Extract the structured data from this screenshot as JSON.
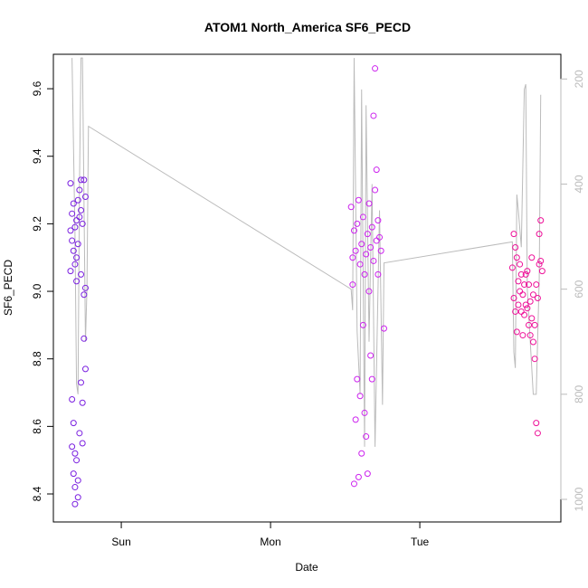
{
  "chart_data": {
    "type": "scatter",
    "title": "ATOM1 North_America SF6_PECD",
    "xlabel": "Date",
    "ylabel": "SF6_PECD",
    "xlim": [
      0.545,
      3.945
    ],
    "xticks": [
      {
        "value": 1,
        "label": "Sun"
      },
      {
        "value": 2,
        "label": "Mon"
      },
      {
        "value": 3,
        "label": "Tue"
      }
    ],
    "ylim": [
      8.317,
      9.702
    ],
    "yticks": [
      8.4,
      8.6,
      8.8,
      {
        "value": 9,
        "label": "9.0"
      },
      9.2,
      9.4,
      9.6
    ],
    "y2lim": [
      1043,
      153
    ],
    "y2ticks": [
      200,
      400,
      600,
      800,
      1000
    ],
    "y2color": "#bbbbbb",
    "series": [
      {
        "color": "#7a1fe0",
        "x": [
          0.66,
          0.66,
          0.66,
          0.67,
          0.67,
          0.67,
          0.67,
          0.68,
          0.68,
          0.68,
          0.68,
          0.69,
          0.69,
          0.69,
          0.69,
          0.69,
          0.7,
          0.7,
          0.7,
          0.7,
          0.71,
          0.71,
          0.71,
          0.71,
          0.72,
          0.72,
          0.72,
          0.73,
          0.73,
          0.73,
          0.73,
          0.74,
          0.74,
          0.74,
          0.75,
          0.75,
          0.75,
          0.76,
          0.76,
          0.76
        ],
        "values": [
          9.32,
          9.18,
          9.06,
          9.23,
          9.15,
          8.68,
          8.54,
          9.26,
          9.12,
          8.61,
          8.46,
          9.19,
          9.08,
          8.52,
          8.42,
          8.37,
          9.21,
          9.1,
          9.03,
          8.5,
          9.27,
          9.14,
          8.44,
          8.39,
          9.3,
          9.22,
          8.58,
          9.33,
          9.24,
          9.05,
          8.73,
          9.2,
          8.67,
          8.55,
          9.33,
          8.99,
          8.86,
          9.28,
          9.01,
          8.77
        ]
      },
      {
        "color": "#cc22ee",
        "x": [
          2.54,
          2.55,
          2.55,
          2.56,
          2.56,
          2.57,
          2.57,
          2.58,
          2.58,
          2.59,
          2.59,
          2.6,
          2.6,
          2.61,
          2.61,
          2.62,
          2.62,
          2.63,
          2.63,
          2.64,
          2.64,
          2.65,
          2.65,
          2.66,
          2.66,
          2.67,
          2.67,
          2.68,
          2.68,
          2.69,
          2.69,
          2.7,
          2.7,
          2.71,
          2.71,
          2.72,
          2.72,
          2.73,
          2.74,
          2.76
        ],
        "values": [
          9.25,
          9.1,
          9.02,
          9.18,
          8.43,
          9.12,
          8.62,
          9.2,
          8.74,
          9.27,
          8.45,
          9.08,
          8.69,
          9.14,
          8.52,
          9.22,
          8.9,
          9.05,
          8.64,
          9.11,
          8.57,
          9.17,
          8.46,
          9.26,
          9.0,
          9.13,
          8.81,
          9.19,
          8.74,
          9.09,
          9.52,
          9.66,
          9.3,
          9.15,
          9.36,
          9.21,
          9.05,
          9.16,
          9.12,
          8.89
        ]
      },
      {
        "color": "#ee1199",
        "x": [
          3.62,
          3.63,
          3.63,
          3.64,
          3.64,
          3.65,
          3.65,
          3.66,
          3.66,
          3.67,
          3.67,
          3.68,
          3.68,
          3.69,
          3.69,
          3.7,
          3.7,
          3.71,
          3.71,
          3.72,
          3.72,
          3.73,
          3.73,
          3.74,
          3.74,
          3.75,
          3.75,
          3.76,
          3.76,
          3.77,
          3.77,
          3.78,
          3.78,
          3.79,
          3.79,
          3.8,
          3.8,
          3.81,
          3.81,
          3.82
        ],
        "values": [
          9.07,
          9.17,
          8.98,
          9.13,
          8.94,
          9.1,
          8.88,
          9.03,
          8.96,
          9.08,
          9.0,
          8.94,
          9.05,
          8.99,
          8.87,
          9.02,
          8.93,
          9.05,
          8.96,
          8.95,
          9.06,
          8.9,
          9.02,
          8.87,
          8.97,
          8.92,
          9.1,
          8.85,
          8.99,
          8.8,
          8.9,
          8.61,
          9.02,
          8.58,
          8.98,
          9.17,
          9.08,
          9.21,
          9.09,
          9.06
        ]
      },
      {
        "type": "line",
        "axis": "y2",
        "color": "#bbbbbb",
        "x": [
          0.67,
          0.69,
          0.7,
          0.71,
          0.72,
          0.73,
          0.74,
          0.76,
          0.77,
          0.78,
          2.54,
          2.55,
          2.56,
          2.58,
          2.6,
          2.61,
          2.63,
          2.64,
          2.66,
          2.68,
          2.7,
          2.72,
          2.73,
          2.75,
          2.76,
          3.62,
          3.63,
          3.64,
          3.65,
          3.66,
          3.68,
          3.7,
          3.71,
          3.72,
          3.74,
          3.76,
          3.78,
          3.8,
          3.81
        ],
        "values": [
          160,
          500,
          780,
          800,
          400,
          160,
          160,
          700,
          600,
          290,
          600,
          640,
          160,
          680,
          800,
          220,
          900,
          250,
          700,
          400,
          900,
          600,
          450,
          820,
          550,
          510,
          720,
          750,
          420,
          450,
          520,
          220,
          210,
          600,
          700,
          800,
          800,
          580,
          230
        ]
      }
    ]
  }
}
